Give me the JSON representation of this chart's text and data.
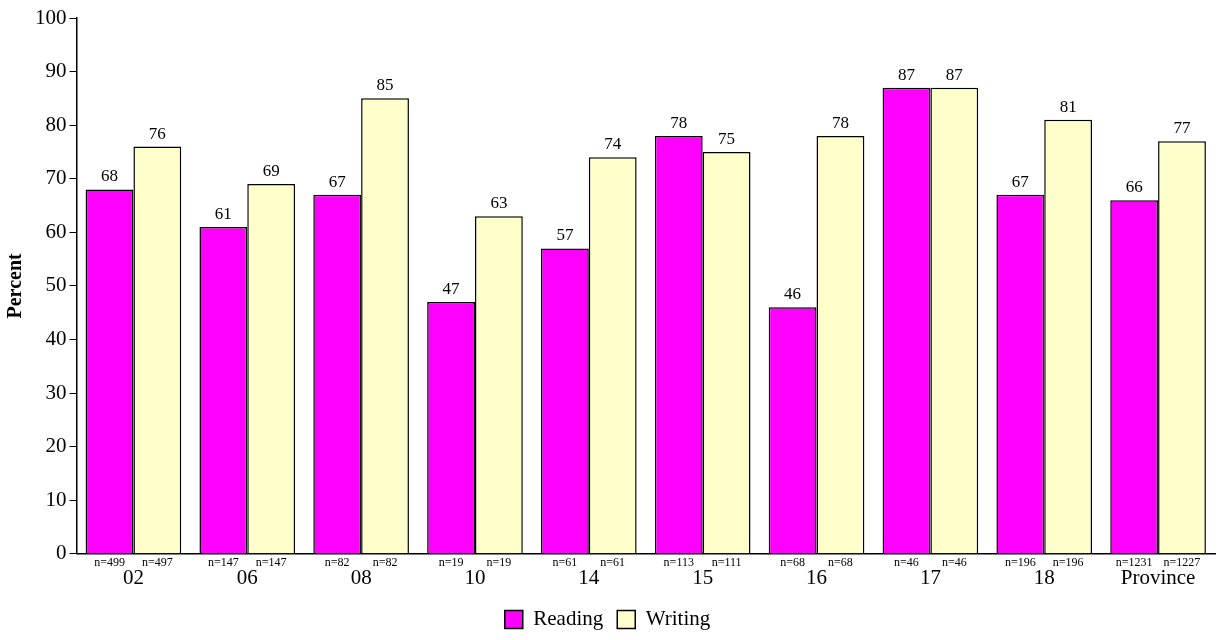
{
  "chart_data": {
    "type": "bar",
    "ylabel": "Percent",
    "categories": [
      "02",
      "06",
      "08",
      "10",
      "14",
      "15",
      "16",
      "17",
      "18",
      "Province"
    ],
    "series": [
      {
        "name": "Reading",
        "color": "#ff00ff",
        "values": [
          68,
          61,
          67,
          47,
          57,
          78,
          46,
          87,
          67,
          66
        ]
      },
      {
        "name": "Writing",
        "color": "#ffffcc",
        "values": [
          76,
          69,
          85,
          63,
          74,
          75,
          78,
          87,
          81,
          77
        ]
      }
    ],
    "annotations": [
      "n=499",
      "n=497",
      "n=147",
      "n=147",
      "n=82",
      "n=82",
      "n=19",
      "n=19",
      "n=61",
      "n=61",
      "n=113",
      "n=111",
      "n=68",
      "n=68",
      "n=46",
      "n=46",
      "n=196",
      "n=196",
      "n=1231",
      "n=1227"
    ],
    "ylim": [
      0,
      100
    ],
    "yticks": [
      0,
      10,
      20,
      30,
      40,
      50,
      60,
      70,
      80,
      90,
      100
    ],
    "data_labels": true,
    "grid": false,
    "legend": "bottom"
  }
}
